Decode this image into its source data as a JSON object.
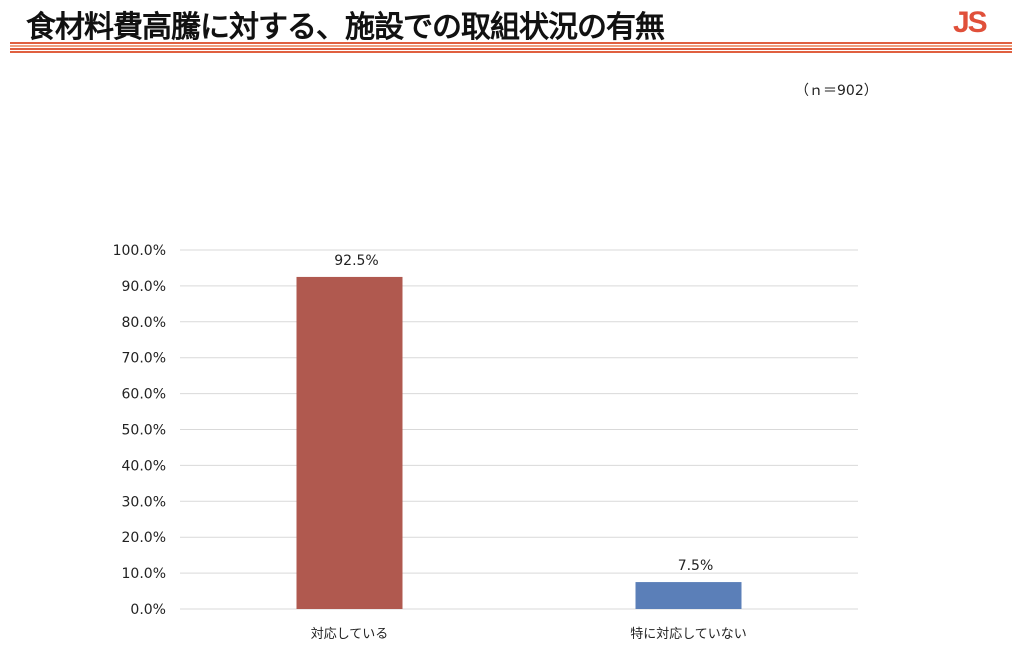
{
  "header": {
    "title": "食材料費高騰に対する、施設での取組状況の有無",
    "logo": "JS"
  },
  "note": "（ｎ＝902）",
  "colors": {
    "accent": "#e06040"
  },
  "chart_data": {
    "type": "bar",
    "categories": [
      "対応している",
      "特に対応していない"
    ],
    "values": [
      92.5,
      7.5
    ],
    "data_labels": [
      "92.5%",
      "7.5%"
    ],
    "colors": [
      "#b0594f",
      "#5b7fb8"
    ],
    "ylim": [
      0,
      100
    ],
    "yticks": [
      "0.0%",
      "10.0%",
      "20.0%",
      "30.0%",
      "40.0%",
      "50.0%",
      "60.0%",
      "70.0%",
      "80.0%",
      "90.0%",
      "100.0%"
    ],
    "grid": true,
    "legend": "none"
  }
}
